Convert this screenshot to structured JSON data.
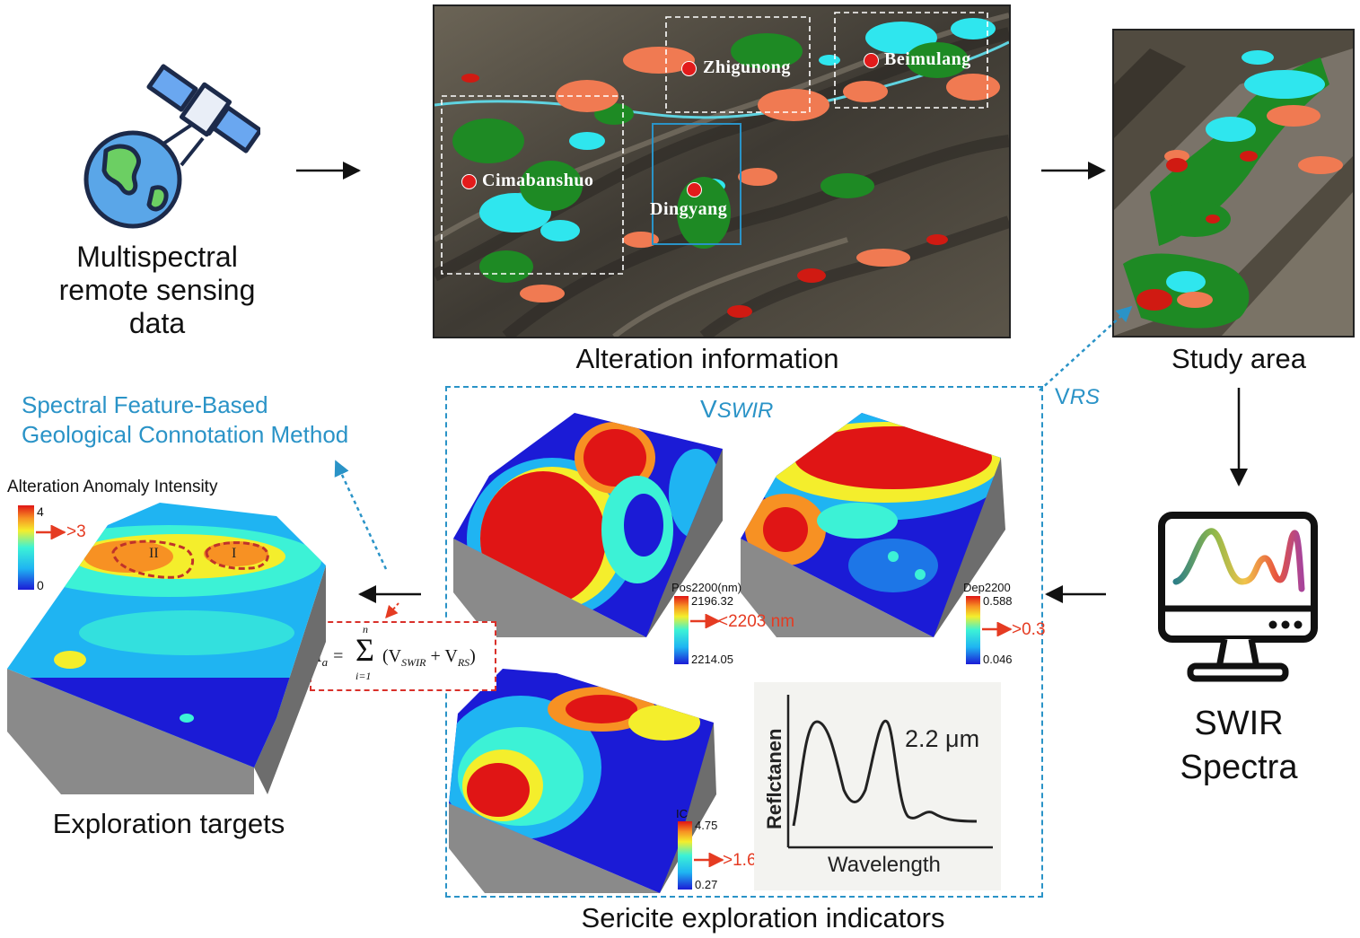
{
  "satellite": {
    "label_lines": [
      "Multispectral",
      "remote sensing",
      "data"
    ],
    "icon": "satellite-earth-icon"
  },
  "alteration_map": {
    "caption": "Alteration information",
    "places": [
      "Zhigunong",
      "Beimulang",
      "Cimabanshuo",
      "Dingyang"
    ]
  },
  "study_area": {
    "caption": "Study area",
    "link_label_prefix": "V",
    "link_label_sub": "RS"
  },
  "swir": {
    "label_lines": [
      "SWIR",
      "Spectra"
    ],
    "icon": "monitor-spectrum-icon"
  },
  "indicators": {
    "caption": "Sericite exploration indicators",
    "vswir_prefix": "V",
    "vswir_sub": "SWIR",
    "pos2200": {
      "title": "Pos2200(nm)",
      "max": "2196.32",
      "min": "2214.05",
      "threshold": "<2203 nm"
    },
    "dep2200": {
      "title": "Dep2200",
      "max": "0.588",
      "min": "0.046",
      "threshold": ">0.3"
    },
    "ic": {
      "title": "IC",
      "max": "4.75",
      "min": "0.27",
      "threshold": ">1.6"
    },
    "spectrum": {
      "ylabel": "Reflctanen",
      "xlabel": "Wavelength",
      "peak_label": "2.2 μm"
    }
  },
  "method": {
    "title_lines": [
      "Spectral Feature-Based",
      "Geological Connotation Method"
    ],
    "formula": {
      "lhs": "I",
      "lhs_sub": "a",
      "sum_top": "n",
      "sum_bottom": "i=1",
      "term1": "V",
      "term1_sub": "SWIR",
      "term2": "V",
      "term2_sub": "RS"
    }
  },
  "targets": {
    "caption": "Exploration targets",
    "legend_title": "Alteration Anomaly Intensity",
    "legend_max": "4",
    "legend_min": "0",
    "threshold": ">3",
    "zone_labels": [
      "II",
      "I"
    ]
  },
  "colors": {
    "accent_blue": "#2a93c7",
    "anomaly_red": "#e53b22",
    "dashed_red": "#d9302a"
  }
}
